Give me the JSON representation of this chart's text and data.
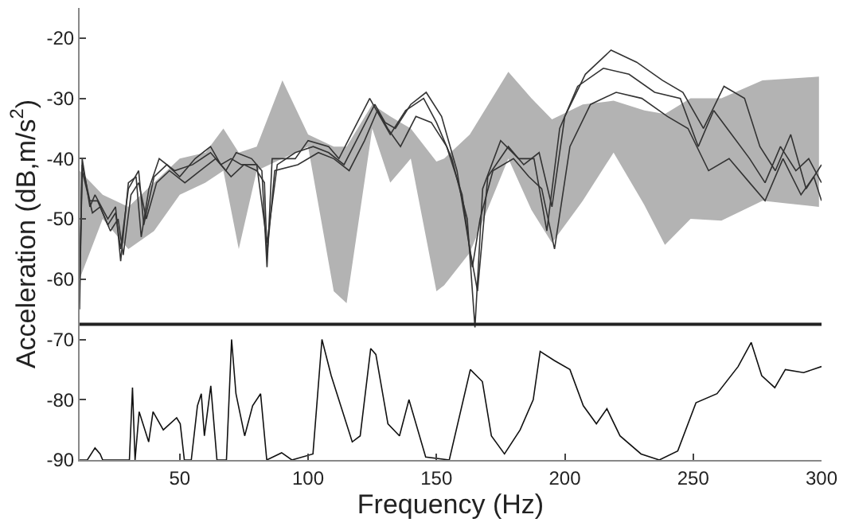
{
  "chart_data": {
    "type": "line",
    "xlabel": "Frequency (Hz)",
    "ylabel": "Acceleration (dB,m/s$^{2}$)",
    "xlim": [
      11,
      300
    ],
    "ylim": [
      -90,
      -15
    ],
    "xticks": [
      50,
      100,
      150,
      200,
      250,
      300
    ],
    "yticks": [
      -20,
      -30,
      -40,
      -50,
      -60,
      -70,
      -80,
      -90
    ],
    "grid": false,
    "marker": "none",
    "line_style": "solid",
    "ref_lines": [
      {
        "axis": "y",
        "value": -67.5,
        "color": "#222222"
      }
    ],
    "series": [
      {
        "type": "area",
        "color": "#b3b3b3",
        "values": [
          null,
          null,
          null,
          null,
          null,
          null,
          null,
          null,
          null,
          null,
          null,
          null,
          null,
          null,
          null,
          null,
          null,
          null,
          null,
          null,
          null,
          null,
          null,
          null,
          null,
          null,
          null,
          null,
          null,
          null
        ],
        "x": [
          11,
          20,
          30,
          40,
          50,
          60,
          67,
          73,
          80,
          90,
          100,
          110,
          115,
          125,
          132,
          140,
          150,
          153,
          163,
          178,
          187,
          195,
          207,
          219,
          231,
          239,
          249,
          261,
          277,
          299
        ],
        "lower": [
          -60,
          -50,
          -55,
          -52,
          -46,
          -44,
          -42,
          -55,
          -42,
          -40,
          -38,
          -62,
          -64,
          -35,
          -44,
          -40,
          -62,
          -61,
          -55.6,
          -40,
          -48.5,
          -54,
          -47,
          -39,
          -47.7,
          -54.3,
          -50,
          -50.3,
          -47,
          -48
        ],
        "upper": [
          -42,
          -46,
          -48,
          -44,
          -40,
          -39,
          -35,
          -39,
          -38,
          -27,
          -36,
          -38,
          -38,
          -31,
          -33,
          -35,
          -40.5,
          -40,
          -36,
          -25.6,
          -30,
          -33.5,
          -31,
          -30.4,
          -32,
          -32.6,
          -30,
          -30,
          -27,
          -26.4
        ]
      },
      {
        "color": "#333333",
        "x": [
          11,
          12,
          15,
          17,
          22,
          25,
          27,
          30,
          33,
          35,
          38,
          42,
          48,
          55,
          62,
          68,
          72,
          78,
          82,
          84,
          86,
          95,
          100,
          108,
          112,
          118,
          124,
          128,
          132,
          138,
          145,
          150,
          156,
          162,
          165,
          168,
          175,
          182,
          188,
          193,
          198,
          205,
          215,
          225,
          235,
          245,
          252,
          258,
          265,
          272,
          278,
          284,
          290,
          295,
          300
        ],
        "values": [
          -65,
          -40,
          -48,
          -46,
          -50,
          -48,
          -57,
          -44,
          -43,
          -53,
          -45,
          -40,
          -42,
          -41,
          -39,
          -42,
          -39,
          -40,
          -42,
          -58,
          -40,
          -40,
          -37,
          -38,
          -40,
          -35,
          -30,
          -33,
          -36,
          -32,
          -30,
          -34,
          -40,
          -50,
          -68,
          -45,
          -37,
          -40,
          -40,
          -52,
          -35,
          -28,
          -25,
          -26,
          -29,
          -30,
          -38,
          -32,
          -36,
          -40,
          -44,
          -38,
          -42,
          -40,
          -44
        ]
      },
      {
        "color": "#333333",
        "x": [
          11,
          12,
          15,
          18,
          22,
          25,
          27,
          30,
          34,
          36,
          40,
          45,
          50,
          56,
          62,
          66,
          70,
          74,
          80,
          84,
          88,
          95,
          102,
          108,
          114,
          120,
          126,
          130,
          134,
          140,
          146,
          152,
          158,
          163,
          166,
          170,
          178,
          184,
          190,
          195,
          200,
          208,
          218,
          228,
          238,
          246,
          254,
          262,
          270,
          276,
          282,
          288,
          294,
          300
        ],
        "values": [
          -60,
          -41,
          -47,
          -47,
          -51,
          -49,
          -55,
          -45,
          -42,
          -51,
          -43,
          -41,
          -43,
          -40,
          -38,
          -41,
          -40,
          -41,
          -41,
          -54,
          -41,
          -39,
          -38,
          -39,
          -41,
          -36,
          -31,
          -34,
          -35,
          -31,
          -29,
          -33,
          -42,
          -55,
          -62,
          -43,
          -38,
          -41,
          -39,
          -48,
          -33,
          -26,
          -22,
          -24,
          -27,
          -29,
          -35,
          -28,
          -30,
          -38,
          -42,
          -36,
          -45,
          -41
        ]
      },
      {
        "color": "#333333",
        "x": [
          11,
          12,
          16,
          19,
          23,
          26,
          28,
          31,
          34,
          37,
          41,
          46,
          52,
          58,
          64,
          70,
          75,
          80,
          83,
          84,
          87,
          96,
          104,
          110,
          116,
          122,
          127,
          131,
          136,
          142,
          148,
          154,
          160,
          164,
          167,
          172,
          180,
          186,
          191,
          196,
          202,
          210,
          220,
          230,
          240,
          248,
          256,
          264,
          272,
          278,
          285,
          292,
          297,
          300
        ],
        "values": [
          -62,
          -42,
          -49,
          -48,
          -52,
          -50,
          -56,
          -46,
          -44,
          -50,
          -44,
          -42,
          -44,
          -42,
          -40,
          -43,
          -41,
          -42,
          -44,
          -56,
          -42,
          -41,
          -39,
          -40,
          -42,
          -37,
          -32,
          -35,
          -38,
          -33,
          -34,
          -38,
          -46,
          -58,
          -50,
          -42,
          -40,
          -43,
          -45,
          -55,
          -38,
          -31,
          -29,
          -30,
          -33,
          -35,
          -42,
          -40,
          -44,
          -47,
          -40,
          -46,
          -43,
          -47
        ]
      },
      {
        "color": "#111111",
        "x": [
          11,
          14,
          17,
          19,
          20,
          28,
          30.4,
          31.6,
          32.6,
          34.2,
          37.9,
          39.6,
          43.6,
          48.8,
          50.2,
          51.8,
          54.5,
          56.9,
          58.4,
          59.6,
          62.1,
          64.5,
          68.2,
          70.2,
          71.9,
          75.3,
          78.4,
          81.5,
          83.9,
          89.7,
          93.7,
          101.9,
          105.4,
          109,
          117.2,
          120.3,
          124.4,
          126.4,
          131.1,
          135.6,
          139.3,
          145.8,
          155,
          163.2,
          167.9,
          171.4,
          176.5,
          182.6,
          187.7,
          190.4,
          195.9,
          202,
          207.2,
          212.3,
          216.4,
          221.5,
          229.7,
          236.8,
          244,
          251.1,
          259.3,
          267.5,
          272.6,
          276.7,
          281.8,
          285.9,
          293,
          300
        ],
        "values": [
          -90,
          -90,
          -88,
          -89,
          -90,
          -90,
          -90,
          -78,
          -90,
          -82,
          -87,
          -82,
          -85,
          -83,
          -84,
          -90,
          -90,
          -81,
          -79,
          -86,
          -77.7,
          -90,
          -90,
          -70,
          -79,
          -86,
          -81,
          -79,
          -90,
          -88.8,
          -90,
          -89,
          -70,
          -76,
          -87,
          -86,
          -71.5,
          -72.5,
          -84,
          -86,
          -80,
          -89.5,
          -90,
          -75,
          -77,
          -86,
          -89,
          -85,
          -80,
          -72,
          -73.5,
          -75,
          -81,
          -84,
          -81.5,
          -86,
          -89,
          -90,
          -88.5,
          -80.5,
          -79,
          -74.5,
          -70.5,
          -76,
          -78,
          -75,
          -75.5,
          -74.5
        ]
      }
    ]
  }
}
